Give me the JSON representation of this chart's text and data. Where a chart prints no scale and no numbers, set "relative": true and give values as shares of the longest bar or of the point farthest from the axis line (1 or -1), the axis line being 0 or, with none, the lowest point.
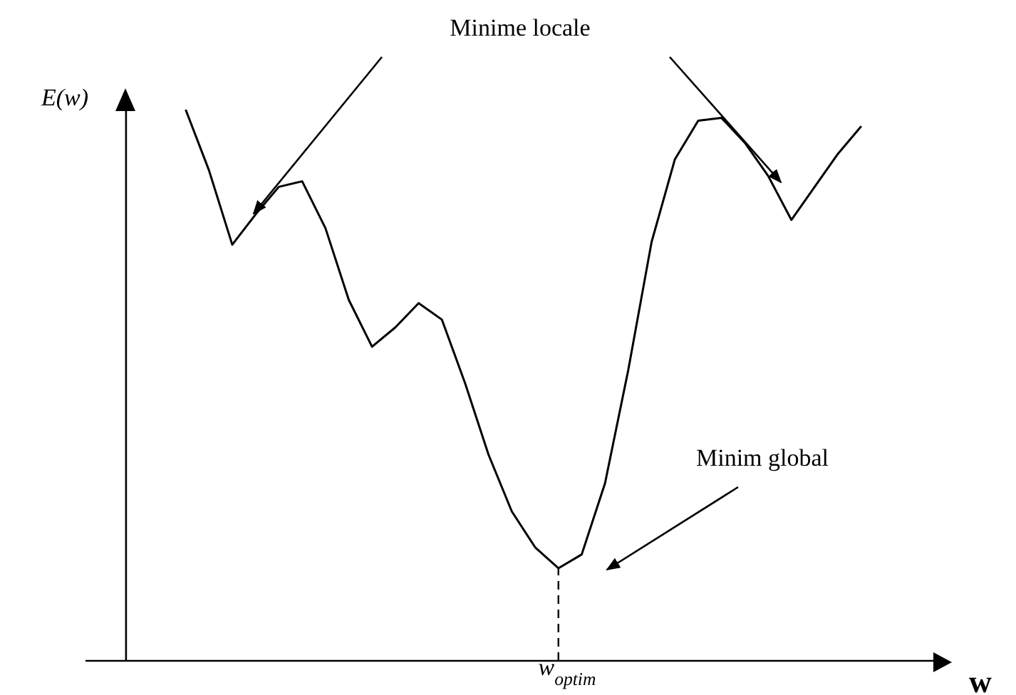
{
  "chart_data": {
    "type": "line",
    "relative": true,
    "xlabel": "w",
    "ylabel": "E(w)",
    "color": "#000000",
    "marker": "none",
    "line_style": "solid",
    "grid": false,
    "legend": false,
    "categories": [
      null,
      null,
      null,
      null,
      null,
      null,
      null,
      null,
      null,
      null,
      null,
      null,
      null,
      null,
      null,
      null,
      null,
      null,
      null,
      null,
      null,
      null,
      null,
      null,
      null,
      null,
      null,
      null,
      null,
      null
    ],
    "values": [
      1,
      0.89,
      0.755,
      0.81,
      0.86,
      0.87,
      0.785,
      0.655,
      0.57,
      0.605,
      0.649,
      0.619,
      0.503,
      0.374,
      0.271,
      0.206,
      0.168,
      0.193,
      0.322,
      0.528,
      0.76,
      0.91,
      0.98,
      0.985,
      0.94,
      0.88,
      0.8,
      0.86,
      0.92,
      0.97
    ],
    "ref_lines": [
      {
        "axis": "x",
        "label": "w$_{optim}$",
        "line_style": "dashed",
        "color": "#000000"
      }
    ],
    "annotations": [
      "Minime locale",
      "Minim global"
    ]
  }
}
